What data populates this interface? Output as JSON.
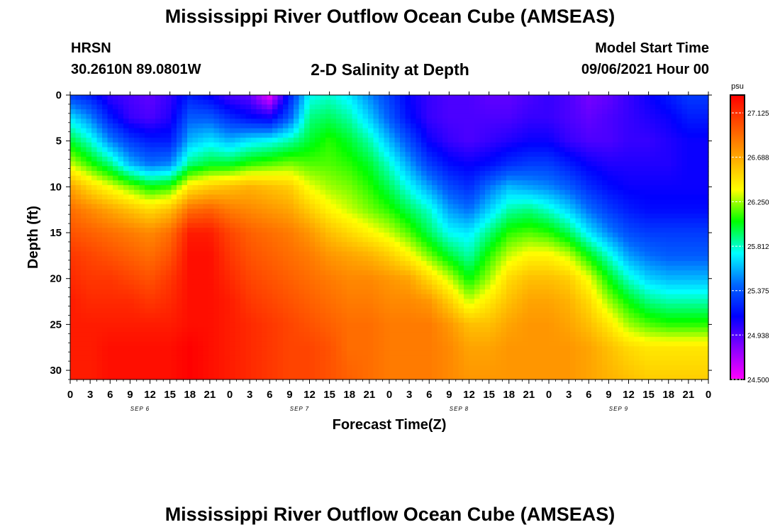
{
  "header": {
    "title": "Mississippi River Outflow Ocean Cube (AMSEAS)",
    "station": "HRSN",
    "coords": "30.2610N  89.0801W",
    "plot_title": "2-D Salinity at Depth",
    "model_start_label": "Model Start Time",
    "model_start": "09/06/2021 Hour 00"
  },
  "footer": {
    "title": "Mississippi River Outflow Ocean Cube (AMSEAS)"
  },
  "chart_data": {
    "type": "heatmap",
    "title": "2-D Salinity at Depth",
    "xlabel": "Forecast Time(Z)",
    "ylabel": "Depth (ft)",
    "x_hours": [
      0,
      3,
      6,
      9,
      12,
      15,
      18,
      21,
      24,
      27,
      30,
      33,
      36,
      39,
      42,
      45,
      48,
      51,
      54,
      57,
      60,
      63,
      66,
      69,
      72,
      75,
      78,
      81,
      84,
      87,
      90,
      93,
      96
    ],
    "x_tick_labels": [
      "0",
      "3",
      "6",
      "9",
      "12",
      "15",
      "18",
      "21",
      "0",
      "3",
      "6",
      "9",
      "12",
      "15",
      "18",
      "21",
      "0",
      "3",
      "6",
      "9",
      "12",
      "15",
      "18",
      "21",
      "0",
      "3",
      "6",
      "9",
      "12",
      "15",
      "18",
      "21",
      "0"
    ],
    "day_labels": [
      {
        "label": "SEP 6",
        "hour": 10.5
      },
      {
        "label": "SEP 7",
        "hour": 34.5
      },
      {
        "label": "SEP 8",
        "hour": 58.5
      },
      {
        "label": "SEP 9",
        "hour": 82.5
      }
    ],
    "y_ticks": [
      0,
      5,
      10,
      15,
      20,
      25,
      30
    ],
    "xlim": [
      0,
      96
    ],
    "ylim": [
      0,
      31
    ],
    "y_inverted": true,
    "depth_ft": [
      0,
      2.5,
      5,
      7.5,
      10,
      12.5,
      15,
      17.5,
      20,
      22.5,
      25,
      27.5,
      31
    ],
    "salinity_psu": [
      [
        25.3,
        25.2,
        25.0,
        24.95,
        24.9,
        25.0,
        25.2,
        25.1,
        24.95,
        24.9,
        24.55,
        25.2,
        25.75,
        25.8,
        25.7,
        25.5,
        25.3,
        25.1,
        25.0,
        24.95,
        24.95,
        24.9,
        24.9,
        24.95,
        25.0,
        24.95,
        24.85,
        24.9,
        25.0,
        25.1,
        25.2,
        25.3,
        25.3
      ],
      [
        25.7,
        25.5,
        25.2,
        25.0,
        24.95,
        25.05,
        25.4,
        25.4,
        25.25,
        25.15,
        25.1,
        25.4,
        25.9,
        25.95,
        25.85,
        25.65,
        25.4,
        25.15,
        25.0,
        24.95,
        24.95,
        24.95,
        24.95,
        25.0,
        25.0,
        24.95,
        24.9,
        24.95,
        25.0,
        25.05,
        25.1,
        25.2,
        25.2
      ],
      [
        26.0,
        25.8,
        25.5,
        25.3,
        25.2,
        25.2,
        25.6,
        25.7,
        25.6,
        25.7,
        25.75,
        25.85,
        26.0,
        26.1,
        26.0,
        25.85,
        25.6,
        25.35,
        25.1,
        25.0,
        24.95,
        25.0,
        25.05,
        25.1,
        25.1,
        25.0,
        24.95,
        24.95,
        25.0,
        25.0,
        25.05,
        25.1,
        25.1
      ],
      [
        26.3,
        26.1,
        25.9,
        25.6,
        25.45,
        25.5,
        25.9,
        26.0,
        26.0,
        26.1,
        26.15,
        26.2,
        26.15,
        26.15,
        26.1,
        26.0,
        25.8,
        25.55,
        25.3,
        25.15,
        25.1,
        25.15,
        25.25,
        25.3,
        25.3,
        25.2,
        25.1,
        25.05,
        25.05,
        25.05,
        25.05,
        25.1,
        25.1
      ],
      [
        26.7,
        26.5,
        26.35,
        26.2,
        26.05,
        26.1,
        26.45,
        26.55,
        26.6,
        26.65,
        26.6,
        26.55,
        26.35,
        26.25,
        26.2,
        26.1,
        25.95,
        25.75,
        25.55,
        25.35,
        25.25,
        25.45,
        25.6,
        25.55,
        25.5,
        25.4,
        25.25,
        25.15,
        25.1,
        25.1,
        25.1,
        25.1,
        25.1
      ],
      [
        26.9,
        26.8,
        26.7,
        26.6,
        26.5,
        26.6,
        26.9,
        26.95,
        26.85,
        26.8,
        26.75,
        26.7,
        26.55,
        26.4,
        26.3,
        26.2,
        26.1,
        25.95,
        25.8,
        25.55,
        25.45,
        25.65,
        25.85,
        25.9,
        25.8,
        25.65,
        25.45,
        25.3,
        25.2,
        25.15,
        25.15,
        25.15,
        25.15
      ],
      [
        27.0,
        26.95,
        26.9,
        26.85,
        26.8,
        26.9,
        27.2,
        27.2,
        27.05,
        26.95,
        26.9,
        26.85,
        26.75,
        26.6,
        26.5,
        26.4,
        26.3,
        26.15,
        25.95,
        25.75,
        25.7,
        25.9,
        26.1,
        26.15,
        26.1,
        25.95,
        25.7,
        25.5,
        25.35,
        25.3,
        25.3,
        25.3,
        25.3
      ],
      [
        27.1,
        27.05,
        27.0,
        26.95,
        26.9,
        27.0,
        27.25,
        27.25,
        27.1,
        27.0,
        26.95,
        26.9,
        26.85,
        26.75,
        26.7,
        26.65,
        26.55,
        26.4,
        26.2,
        26.0,
        25.85,
        26.1,
        26.3,
        26.4,
        26.4,
        26.3,
        26.05,
        25.8,
        25.55,
        25.45,
        25.4,
        25.4,
        25.4
      ],
      [
        27.15,
        27.1,
        27.1,
        27.05,
        27.0,
        27.1,
        27.25,
        27.25,
        27.15,
        27.05,
        27.0,
        26.95,
        26.9,
        26.85,
        26.8,
        26.8,
        26.75,
        26.7,
        26.5,
        26.3,
        26.05,
        26.25,
        26.5,
        26.6,
        26.6,
        26.55,
        26.35,
        26.05,
        25.8,
        25.65,
        25.6,
        25.6,
        25.6
      ],
      [
        27.2,
        27.15,
        27.15,
        27.15,
        27.1,
        27.15,
        27.25,
        27.25,
        27.2,
        27.1,
        27.05,
        27.0,
        26.95,
        26.9,
        26.85,
        26.85,
        26.8,
        26.8,
        26.75,
        26.55,
        26.3,
        26.45,
        26.6,
        26.7,
        26.7,
        26.65,
        26.5,
        26.25,
        26.05,
        25.9,
        25.85,
        25.85,
        25.85
      ],
      [
        27.2,
        27.2,
        27.2,
        27.2,
        27.2,
        27.2,
        27.25,
        27.25,
        27.2,
        27.15,
        27.1,
        27.05,
        27.0,
        26.95,
        26.9,
        26.9,
        26.85,
        26.85,
        26.85,
        26.75,
        26.6,
        26.6,
        26.7,
        26.75,
        26.75,
        26.7,
        26.6,
        26.45,
        26.25,
        26.15,
        26.1,
        26.1,
        26.1
      ],
      [
        27.2,
        27.2,
        27.25,
        27.25,
        27.25,
        27.25,
        27.3,
        27.25,
        27.2,
        27.15,
        27.1,
        27.05,
        27.05,
        27.0,
        26.9,
        26.9,
        26.85,
        26.85,
        26.85,
        26.8,
        26.7,
        26.7,
        26.75,
        26.75,
        26.75,
        26.75,
        26.7,
        26.6,
        26.5,
        26.45,
        26.45,
        26.45,
        26.45
      ],
      [
        27.2,
        27.2,
        27.25,
        27.25,
        27.25,
        27.25,
        27.3,
        27.25,
        27.2,
        27.15,
        27.1,
        27.05,
        27.05,
        27.0,
        26.95,
        26.9,
        26.85,
        26.85,
        26.85,
        26.8,
        26.75,
        26.75,
        26.75,
        26.75,
        26.75,
        26.75,
        26.7,
        26.65,
        26.6,
        26.55,
        26.55,
        26.55,
        26.55
      ]
    ],
    "colorbar": {
      "unit": "psu",
      "min": 24.5,
      "max": 27.3,
      "tick_labels": [
        "27.125",
        "26.688",
        "26.250",
        "25.812",
        "25.375",
        "24.938",
        "24.500"
      ],
      "tick_values": [
        27.125,
        26.688,
        26.25,
        25.812,
        25.375,
        24.938,
        24.5
      ],
      "colors": [
        "#ff00ff",
        "#8800ff",
        "#0000ff",
        "#0066ff",
        "#00ffff",
        "#00ff00",
        "#ffff00",
        "#ffaa00",
        "#ff5500",
        "#ff0000"
      ]
    }
  }
}
